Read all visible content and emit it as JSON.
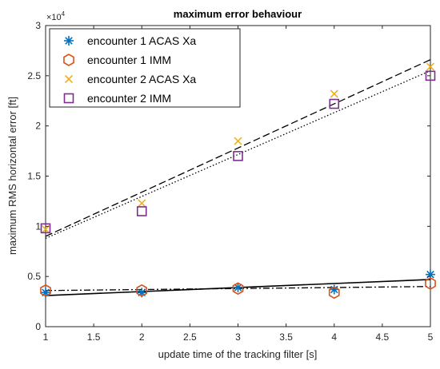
{
  "chart_data": {
    "type": "scatter",
    "title": "maximum error behaviour",
    "xlabel": "update time of the tracking filter [s]",
    "ylabel": "maximum RMS horizontal error [ft]",
    "exponent_label": "×10",
    "exponent_power": "4",
    "xlim": [
      1,
      5
    ],
    "ylim": [
      0,
      3
    ],
    "scale_factor": 10000,
    "x_ticks": [
      "1",
      "1.5",
      "2",
      "2.5",
      "3",
      "3.5",
      "4",
      "4.5",
      "5"
    ],
    "y_ticks": [
      "0",
      "0.5",
      "1",
      "1.5",
      "2",
      "2.5",
      "3"
    ],
    "x_tick_values": [
      1,
      1.5,
      2,
      2.5,
      3,
      3.5,
      4,
      4.5,
      5
    ],
    "y_tick_values": [
      0,
      0.5,
      1,
      1.5,
      2,
      2.5,
      3
    ],
    "legend_position": "top-left",
    "grid": false,
    "x": [
      1,
      2,
      3,
      4,
      5
    ],
    "series": [
      {
        "name": "encounter 1 ACAS Xa",
        "marker": "asterisk",
        "color": "#0072BD",
        "values": [
          0.34,
          0.34,
          0.39,
          0.37,
          0.52
        ]
      },
      {
        "name": "encounter 1 IMM",
        "marker": "hexagon",
        "color": "#D95319",
        "values": [
          0.36,
          0.36,
          0.38,
          0.34,
          0.43
        ]
      },
      {
        "name": "encounter 2 ACAS Xa",
        "marker": "x",
        "color": "#EDB120",
        "values": [
          0.97,
          1.23,
          1.85,
          2.32,
          2.59
        ]
      },
      {
        "name": "encounter 2 IMM",
        "marker": "square",
        "color": "#7E2F8E",
        "values": [
          0.98,
          1.15,
          1.7,
          2.22,
          2.5
        ]
      }
    ],
    "fit_lines": [
      {
        "style": "solid",
        "from": [
          1,
          0.31
        ],
        "to": [
          5,
          0.47
        ]
      },
      {
        "style": "dashdot",
        "from": [
          1,
          0.36
        ],
        "to": [
          5,
          0.4
        ]
      },
      {
        "style": "dashed",
        "from": [
          1,
          0.9
        ],
        "to": [
          5,
          2.66
        ]
      },
      {
        "style": "dotted",
        "from": [
          1,
          0.88
        ],
        "to": [
          5,
          2.55
        ]
      }
    ]
  }
}
